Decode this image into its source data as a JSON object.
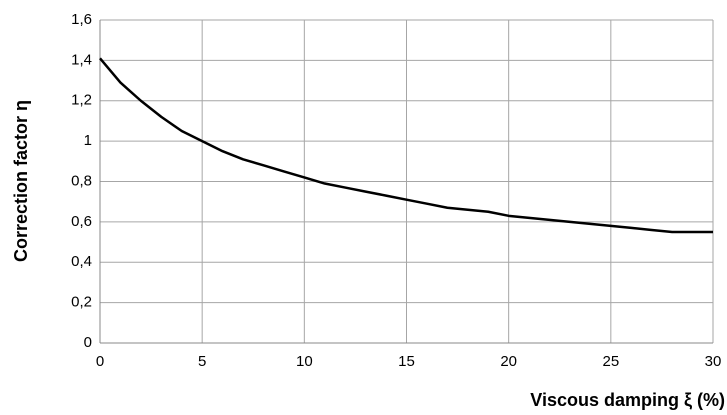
{
  "chart_data": {
    "type": "line",
    "xlabel": "Viscous damping ξ (%)",
    "ylabel": "Correction factor η",
    "x": [
      0,
      1,
      2,
      3,
      4,
      5,
      6,
      7,
      8,
      9,
      10,
      11,
      12,
      13,
      14,
      15,
      16,
      17,
      18,
      19,
      20,
      21,
      22,
      23,
      24,
      25,
      26,
      27,
      28,
      29,
      30
    ],
    "series": [
      {
        "name": "η",
        "color": "#000000",
        "values": [
          1.41,
          1.29,
          1.2,
          1.12,
          1.05,
          1.0,
          0.95,
          0.91,
          0.88,
          0.85,
          0.82,
          0.79,
          0.77,
          0.75,
          0.73,
          0.71,
          0.69,
          0.67,
          0.66,
          0.65,
          0.63,
          0.62,
          0.61,
          0.6,
          0.59,
          0.58,
          0.57,
          0.56,
          0.55,
          0.55,
          0.55
        ]
      }
    ],
    "xlim": [
      0,
      30
    ],
    "xticks": [
      0,
      5,
      10,
      15,
      20,
      25,
      30
    ],
    "ylim": [
      0,
      1.6
    ],
    "yticks": [
      0,
      {
        "value": 0.2,
        "label": "0,2"
      },
      {
        "value": 0.4,
        "label": "0,4"
      },
      {
        "value": 0.6,
        "label": "0,6"
      },
      {
        "value": 0.8,
        "label": "0,8"
      },
      1,
      {
        "value": 1.2,
        "label": "1,2"
      },
      {
        "value": 1.4,
        "label": "1,4"
      },
      {
        "value": 1.6,
        "label": "1,6"
      }
    ],
    "grid": true
  }
}
